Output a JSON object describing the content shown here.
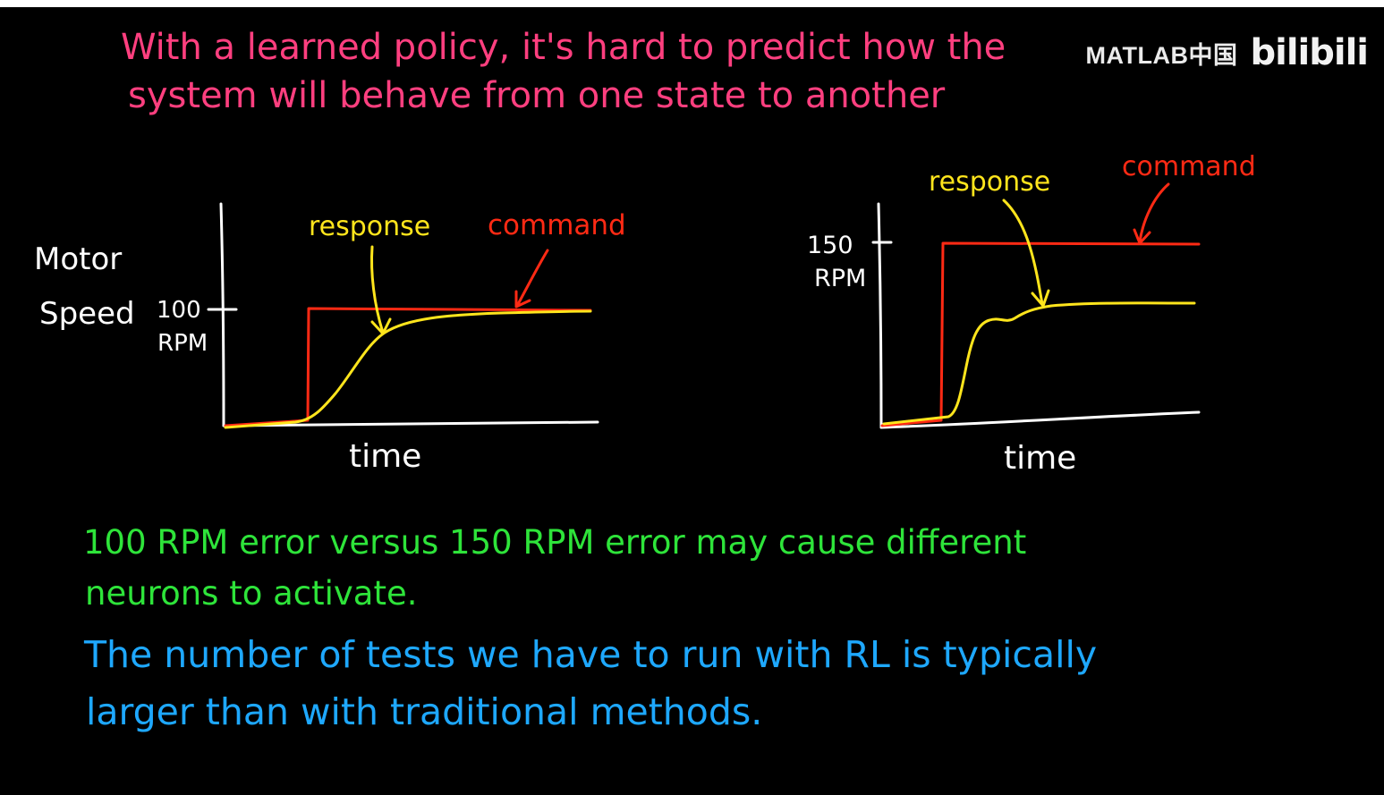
{
  "colors": {
    "background": "#000000",
    "title": "#ff3f7f",
    "axis": "#ffffff",
    "command": "#ff2a14",
    "response": "#ffe51c",
    "green_note": "#2ee43a",
    "blue_note": "#1ea8ff"
  },
  "header": {
    "line1": "With a learned policy, it's hard to predict how the",
    "line2": "system will behave from one state to another"
  },
  "watermark": {
    "matlab": "MATLAB中国",
    "bilibili": "bilibili"
  },
  "diagram_left": {
    "y_title_line1": "Motor",
    "y_title_line2": "Speed",
    "tick_value": "100",
    "tick_unit": "RPM",
    "x_label": "time",
    "response_label": "response",
    "command_label": "command"
  },
  "diagram_right": {
    "tick_value": "150",
    "tick_unit": "RPM",
    "x_label": "time",
    "response_label": "response",
    "command_label": "command"
  },
  "notes": {
    "green_line1": "100 RPM error versus 150 RPM error may cause different",
    "green_line2": "neurons to activate.",
    "blue_line1": "The number of tests we have to run with RL is typically",
    "blue_line2": "larger than with traditional methods."
  }
}
